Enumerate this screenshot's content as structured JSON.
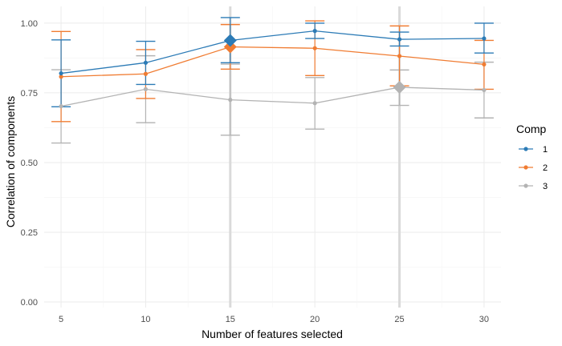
{
  "chart_data": {
    "type": "line",
    "xlabel": "Number of features selected",
    "ylabel": "Correlation of components",
    "x": [
      5,
      10,
      15,
      20,
      25,
      30
    ],
    "x_ticks": [
      "5",
      "10",
      "15",
      "20",
      "25",
      "30"
    ],
    "y_ticks": [
      "0.00",
      "0.25",
      "0.50",
      "0.75",
      "1.00"
    ],
    "xlim": [
      4.0,
      31.0
    ],
    "ylim": [
      -0.02,
      1.06
    ],
    "grid": true,
    "legend": {
      "title": "Comp",
      "position": "right"
    },
    "highlight_x": [
      15,
      25
    ],
    "series": [
      {
        "name": "1",
        "color": "#2c7bb6",
        "values": [
          0.82,
          0.858,
          0.938,
          0.972,
          0.942,
          0.945
        ],
        "lower": [
          0.7,
          0.78,
          0.858,
          0.945,
          0.918,
          0.893
        ],
        "upper": [
          0.94,
          0.935,
          1.02,
          1.0,
          0.968,
          1.0
        ],
        "large_marker_at": [
          15
        ]
      },
      {
        "name": "2",
        "color": "#f07c32",
        "values": [
          0.808,
          0.818,
          0.915,
          0.91,
          0.882,
          0.852
        ],
        "lower": [
          0.647,
          0.73,
          0.835,
          0.812,
          0.775,
          0.763
        ],
        "upper": [
          0.97,
          0.905,
          0.995,
          1.008,
          0.99,
          0.938
        ],
        "large_marker_at": [
          15
        ]
      },
      {
        "name": "3",
        "color": "#b3b3b3",
        "values": [
          0.702,
          0.763,
          0.725,
          0.713,
          0.77,
          0.76
        ],
        "lower": [
          0.57,
          0.643,
          0.598,
          0.62,
          0.705,
          0.66
        ],
        "upper": [
          0.833,
          0.883,
          0.853,
          0.805,
          0.832,
          0.86
        ],
        "large_marker_at": [
          25
        ]
      }
    ]
  }
}
